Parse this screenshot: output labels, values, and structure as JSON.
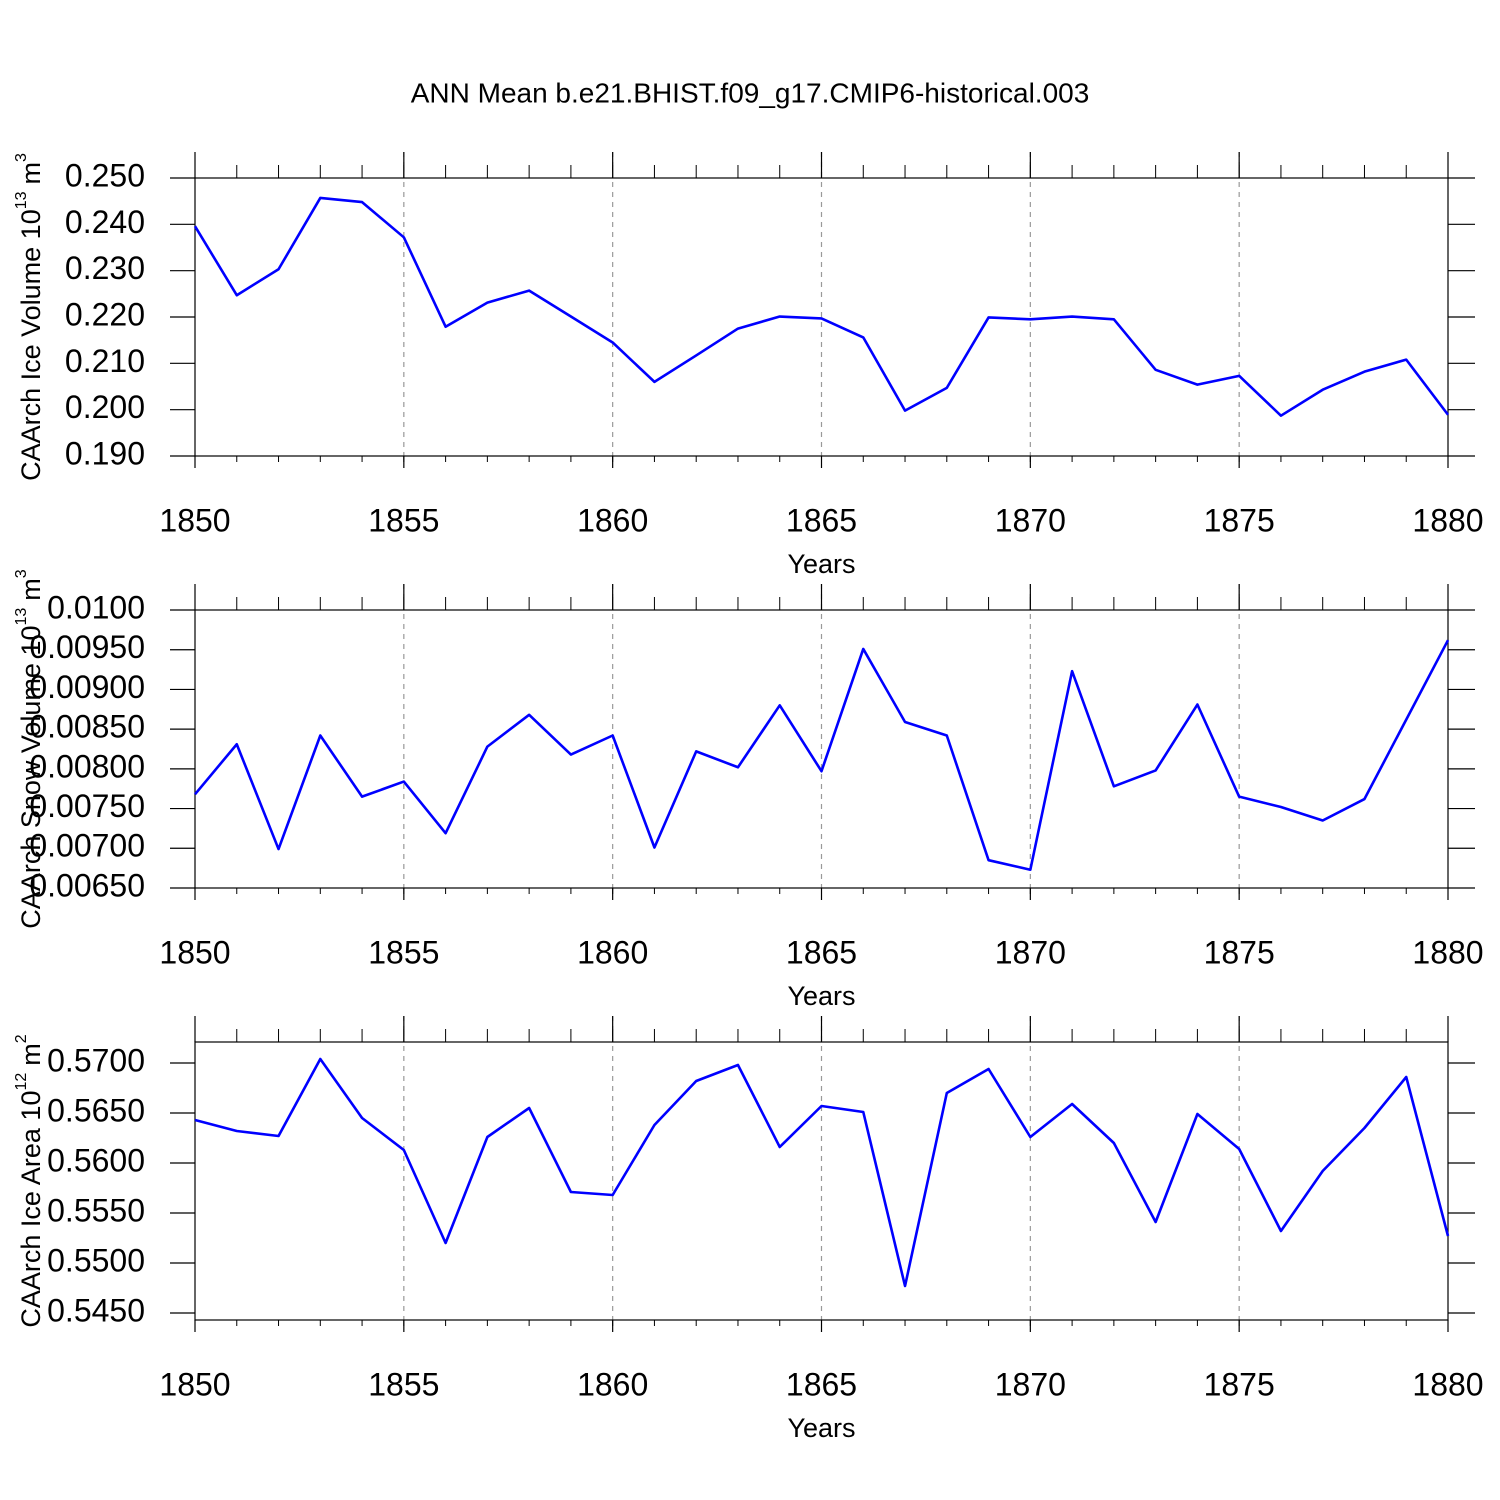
{
  "chart_data": [
    {
      "type": "line",
      "title": "ANN Mean b.e21.BHIST.f09_g17.CMIP6-historical.003",
      "x_label": "Years",
      "y_label": {
        "text": "CAArch Ice Volume 10",
        "exponent": "13",
        "unit": "m",
        "unit_exponent": "3"
      },
      "x": [
        1850,
        1851,
        1852,
        1853,
        1854,
        1855,
        1856,
        1857,
        1858,
        1859,
        1860,
        1861,
        1862,
        1863,
        1864,
        1865,
        1866,
        1867,
        1868,
        1869,
        1870,
        1871,
        1872,
        1873,
        1874,
        1875,
        1876,
        1877,
        1878,
        1879,
        1880
      ],
      "values": [
        0.2396,
        0.2247,
        0.2303,
        0.2457,
        0.2448,
        0.2372,
        0.2179,
        0.2231,
        0.2257,
        0.2201,
        0.2145,
        0.206,
        0.2117,
        0.2175,
        0.2201,
        0.2197,
        0.2156,
        0.1998,
        0.2047,
        0.2199,
        0.2195,
        0.2201,
        0.2195,
        0.2086,
        0.2054,
        0.2073,
        0.1987,
        0.2043,
        0.2082,
        0.2108,
        0.1989
      ],
      "color": "#0000ff",
      "xlim": [
        1850,
        1880
      ],
      "xticks": [
        1850,
        1855,
        1860,
        1865,
        1870,
        1875,
        1880
      ],
      "ylim": [
        0.19,
        0.25
      ],
      "yticks": [
        {
          "value": 0.19,
          "label": "0.190"
        },
        {
          "value": 0.2,
          "label": "0.200"
        },
        {
          "value": 0.21,
          "label": "0.210"
        },
        {
          "value": 0.22,
          "label": "0.220"
        },
        {
          "value": 0.23,
          "label": "0.230"
        },
        {
          "value": 0.24,
          "label": "0.240"
        },
        {
          "value": 0.25,
          "label": "0.250"
        }
      ],
      "grid": true
    },
    {
      "type": "line",
      "x_label": "Years",
      "y_label": {
        "text": "CAArch Snow Volume 10",
        "exponent": "13",
        "unit": "m",
        "unit_exponent": "3"
      },
      "x": [
        1850,
        1851,
        1852,
        1853,
        1854,
        1855,
        1856,
        1857,
        1858,
        1859,
        1860,
        1861,
        1862,
        1863,
        1864,
        1865,
        1866,
        1867,
        1868,
        1869,
        1870,
        1871,
        1872,
        1873,
        1874,
        1875,
        1876,
        1877,
        1878,
        1879,
        1880
      ],
      "values": [
        0.00768,
        0.00831,
        0.00699,
        0.00842,
        0.00765,
        0.00784,
        0.00719,
        0.00828,
        0.00868,
        0.00818,
        0.00842,
        0.00701,
        0.00822,
        0.00802,
        0.0088,
        0.00797,
        0.00951,
        0.00859,
        0.00842,
        0.00685,
        0.00673,
        0.00923,
        0.00778,
        0.00798,
        0.00881,
        0.00765,
        0.00752,
        0.00735,
        0.00762,
        0.00862,
        0.00962
      ],
      "color": "#0000ff",
      "xlim": [
        1850,
        1880
      ],
      "xticks": [
        1850,
        1855,
        1860,
        1865,
        1870,
        1875,
        1880
      ],
      "ylim": [
        0.0065,
        0.01
      ],
      "yticks": [
        {
          "value": 0.0065,
          "label": "0.00650"
        },
        {
          "value": 0.007,
          "label": "0.00700"
        },
        {
          "value": 0.0075,
          "label": "0.00750"
        },
        {
          "value": 0.008,
          "label": "0.00800"
        },
        {
          "value": 0.0085,
          "label": "0.00850"
        },
        {
          "value": 0.009,
          "label": "0.00900"
        },
        {
          "value": 0.0095,
          "label": "0.00950"
        },
        {
          "value": 0.01,
          "label": "0.0100"
        }
      ],
      "grid": true
    },
    {
      "type": "line",
      "x_label": "Years",
      "y_label": {
        "text": "CAArch Ice Area 10",
        "exponent": "12",
        "unit": "m",
        "unit_exponent": "2"
      },
      "x": [
        1850,
        1851,
        1852,
        1853,
        1854,
        1855,
        1856,
        1857,
        1858,
        1859,
        1860,
        1861,
        1862,
        1863,
        1864,
        1865,
        1866,
        1867,
        1868,
        1869,
        1870,
        1871,
        1872,
        1873,
        1874,
        1875,
        1876,
        1877,
        1878,
        1879,
        1880
      ],
      "values": [
        0.5643,
        0.5632,
        0.5627,
        0.5704,
        0.5645,
        0.5613,
        0.552,
        0.5626,
        0.5655,
        0.5571,
        0.5568,
        0.5638,
        0.5682,
        0.5698,
        0.5616,
        0.5657,
        0.5651,
        0.5477,
        0.567,
        0.5694,
        0.5626,
        0.5659,
        0.562,
        0.5541,
        0.5649,
        0.5614,
        0.5532,
        0.5592,
        0.5635,
        0.5686,
        0.5527
      ],
      "color": "#0000ff",
      "xlim": [
        1850,
        1880
      ],
      "xticks": [
        1850,
        1855,
        1860,
        1865,
        1870,
        1875,
        1880
      ],
      "ylim": [
        0.5443,
        0.5721
      ],
      "yticks": [
        {
          "value": 0.545,
          "label": "0.5450"
        },
        {
          "value": 0.55,
          "label": "0.5500"
        },
        {
          "value": 0.555,
          "label": "0.5550"
        },
        {
          "value": 0.56,
          "label": "0.5600"
        },
        {
          "value": 0.565,
          "label": "0.5650"
        },
        {
          "value": 0.57,
          "label": "0.5700"
        }
      ],
      "grid": true
    }
  ]
}
